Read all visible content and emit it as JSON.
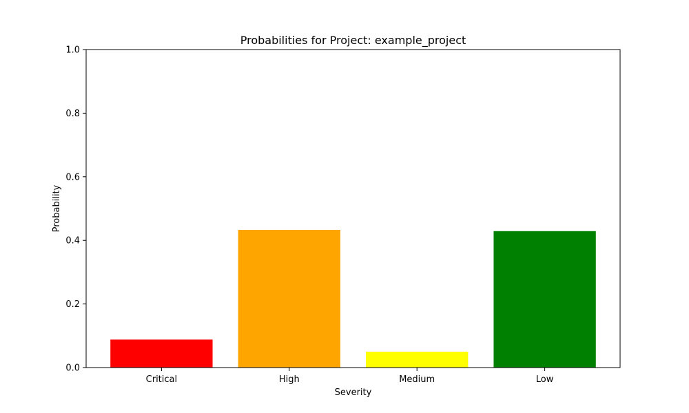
{
  "chart_data": {
    "type": "bar",
    "title": "Probabilities for Project: example_project",
    "xlabel": "Severity",
    "ylabel": "Probability",
    "categories": [
      "Critical",
      "High",
      "Medium",
      "Low"
    ],
    "values": [
      0.088,
      0.433,
      0.05,
      0.429
    ],
    "colors": [
      "#ff0000",
      "#ffa500",
      "#ffff00",
      "#008000"
    ],
    "ylim": [
      0,
      1.0
    ],
    "yticks": [
      "0.0",
      "0.2",
      "0.4",
      "0.6",
      "0.8",
      "1.0"
    ],
    "grid": false,
    "legend": "none"
  }
}
